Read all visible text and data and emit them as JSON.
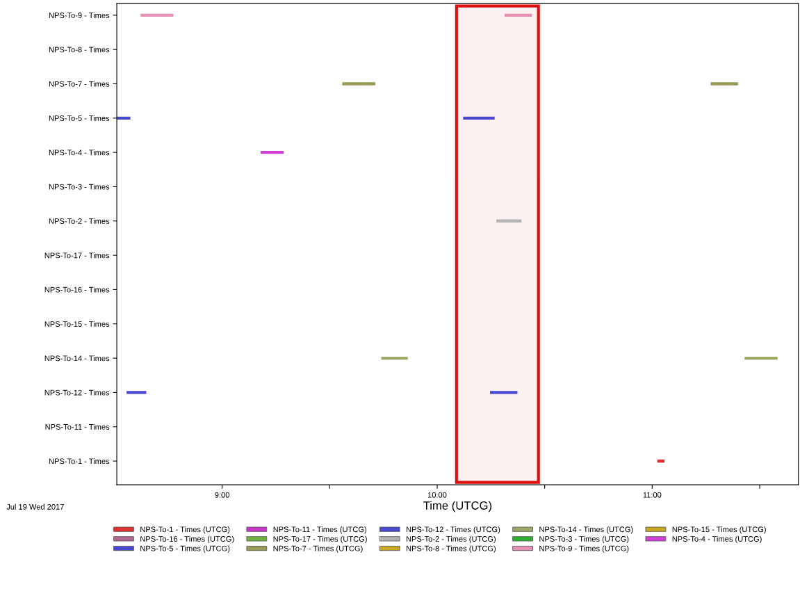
{
  "chart_data": {
    "type": "bar",
    "orientation": "horizontal",
    "xlabel": "Time (UTCG)",
    "categories": [
      "NPS-To-9 - Times",
      "NPS-To-8 - Times",
      "NPS-To-7 - Times",
      "NPS-To-5 - Times",
      "NPS-To-4 - Times",
      "NPS-To-3 - Times",
      "NPS-To-2 - Times",
      "NPS-To-17 - Times",
      "NPS-To-16 - Times",
      "NPS-To-15 - Times",
      "NPS-To-14 - Times",
      "NPS-To-12 - Times",
      "NPS-To-11 - Times",
      "NPS-To-1 - Times"
    ],
    "series": [
      {
        "name": "NPS-To-1 - Times (UTCG)",
        "color": "#e03030",
        "base": [
          null,
          null,
          null,
          null,
          null,
          null,
          null,
          null,
          null,
          null,
          null,
          null,
          null,
          11.026
        ],
        "values": [
          null,
          null,
          null,
          null,
          null,
          null,
          null,
          null,
          null,
          null,
          null,
          null,
          null,
          0.029
        ]
      },
      {
        "name": "NPS-To-11 - Times (UTCG)",
        "color": "#c838c8",
        "base": [
          null,
          null,
          null,
          null,
          null,
          null,
          null,
          null,
          null,
          null,
          null,
          null,
          null,
          null
        ],
        "values": [
          null,
          null,
          null,
          null,
          null,
          null,
          null,
          null,
          null,
          null,
          null,
          null,
          null,
          null
        ]
      },
      {
        "name": "NPS-To-12 - Times (UTCG)",
        "color": "#4848d0",
        "base": [
          null,
          null,
          null,
          null,
          null,
          null,
          null,
          null,
          null,
          null,
          null,
          8.558,
          null,
          null
        ],
        "values": [
          null,
          null,
          null,
          null,
          null,
          null,
          null,
          null,
          null,
          null,
          null,
          0.087,
          null,
          null
        ]
      },
      {
        "name": "NPS-To-14 - Times (UTCG)",
        "color": "#a0a868",
        "base": [
          null,
          null,
          null,
          null,
          null,
          null,
          null,
          null,
          null,
          null,
          9.742,
          null,
          null,
          null
        ],
        "values": [
          null,
          null,
          null,
          null,
          null,
          null,
          null,
          null,
          null,
          null,
          0.119,
          null,
          null,
          null
        ]
      },
      {
        "name": "NPS-To-15 - Times (UTCG)",
        "color": "#c8a820",
        "base": [
          null,
          null,
          null,
          null,
          null,
          null,
          null,
          null,
          null,
          null,
          null,
          null,
          null,
          null
        ],
        "values": [
          null,
          null,
          null,
          null,
          null,
          null,
          null,
          null,
          null,
          null,
          null,
          null,
          null,
          null
        ]
      },
      {
        "name": "NPS-To-16 - Times (UTCG)",
        "color": "#b06890",
        "base": [
          null,
          null,
          null,
          null,
          null,
          null,
          null,
          null,
          null,
          null,
          null,
          null,
          null,
          null
        ],
        "values": [
          null,
          null,
          null,
          null,
          null,
          null,
          null,
          null,
          null,
          null,
          null,
          null,
          null,
          null
        ]
      },
      {
        "name": "NPS-To-17 - Times (UTCG)",
        "color": "#70b040",
        "base": [
          null,
          null,
          null,
          null,
          null,
          null,
          null,
          null,
          null,
          null,
          null,
          null,
          null,
          null
        ],
        "values": [
          null,
          null,
          null,
          null,
          null,
          null,
          null,
          null,
          null,
          null,
          null,
          null,
          null,
          null
        ]
      },
      {
        "name": "NPS-To-2 - Times (UTCG)",
        "color": "#b4b4b4",
        "base": [
          null,
          null,
          null,
          null,
          null,
          null,
          10.277,
          null,
          null,
          null,
          null,
          null,
          null,
          null
        ],
        "values": [
          null,
          null,
          null,
          null,
          null,
          null,
          0.113,
          null,
          null,
          null,
          null,
          null,
          null,
          null
        ]
      },
      {
        "name": "NPS-To-3 - Times (UTCG)",
        "color": "#30b030",
        "base": [
          null,
          null,
          null,
          null,
          null,
          null,
          null,
          null,
          null,
          null,
          null,
          null,
          null,
          null
        ],
        "values": [
          null,
          null,
          null,
          null,
          null,
          null,
          null,
          null,
          null,
          null,
          null,
          null,
          null,
          null
        ]
      },
      {
        "name": "NPS-To-4 - Times (UTCG)",
        "color": "#d040d8",
        "base": [
          null,
          null,
          null,
          null,
          9.181,
          null,
          null,
          null,
          null,
          null,
          null,
          null,
          null,
          null
        ],
        "values": [
          null,
          null,
          null,
          null,
          0.103,
          null,
          null,
          null,
          null,
          null,
          null,
          null,
          null,
          null
        ]
      },
      {
        "name": "NPS-To-5 - Times (UTCG)",
        "color": "#4848d0",
        "base": [
          null,
          null,
          null,
          8.51,
          null,
          null,
          null,
          null,
          null,
          null,
          null,
          null,
          null,
          null
        ],
        "values": [
          null,
          null,
          null,
          0.061,
          null,
          null,
          null,
          null,
          null,
          null,
          null,
          null,
          null,
          null
        ]
      },
      {
        "name": "NPS-To-7 - Times (UTCG)",
        "color": "#9a9a58",
        "base": [
          null,
          null,
          9.561,
          null,
          null,
          null,
          null,
          null,
          null,
          null,
          null,
          null,
          null,
          null
        ],
        "values": [
          null,
          null,
          0.149,
          null,
          null,
          null,
          null,
          null,
          null,
          null,
          null,
          null,
          null,
          null
        ]
      },
      {
        "name": "NPS-To-8 - Times (UTCG)",
        "color": "#c8a820",
        "base": [
          null,
          null,
          null,
          null,
          null,
          null,
          null,
          null,
          null,
          null,
          null,
          null,
          null,
          null
        ],
        "values": [
          null,
          null,
          null,
          null,
          null,
          null,
          null,
          null,
          null,
          null,
          null,
          null,
          null,
          null
        ]
      },
      {
        "name": "NPS-To-9 - Times (UTCG)",
        "color": "#e58fb2",
        "base": [
          8.623,
          null,
          null,
          null,
          null,
          null,
          null,
          null,
          null,
          null,
          null,
          null,
          null,
          null
        ],
        "values": [
          0.148,
          null,
          null,
          null,
          null,
          null,
          null,
          null,
          null,
          null,
          null,
          null,
          null,
          null
        ]
      },
      {
        "color": "#e58fb2",
        "base": [
          10.316,
          null,
          null,
          null,
          null,
          null,
          null,
          null,
          null,
          null,
          null,
          null,
          null,
          null
        ],
        "values": [
          0.123,
          null,
          null,
          null,
          null,
          null,
          null,
          null,
          null,
          null,
          null,
          null,
          null,
          null
        ]
      },
      {
        "color": "#9a9a58",
        "base": [
          null,
          null,
          11.274,
          null,
          null,
          null,
          null,
          null,
          null,
          null,
          null,
          null,
          null,
          null
        ],
        "values": [
          null,
          null,
          0.123,
          null,
          null,
          null,
          null,
          null,
          null,
          null,
          null,
          null,
          null,
          null
        ]
      },
      {
        "color": "#4848d0",
        "base": [
          null,
          null,
          null,
          10.123,
          null,
          null,
          null,
          null,
          null,
          null,
          null,
          null,
          null,
          null
        ],
        "values": [
          null,
          null,
          null,
          0.142,
          null,
          null,
          null,
          null,
          null,
          null,
          null,
          null,
          null,
          null
        ]
      },
      {
        "color": "#a0a868",
        "base": [
          null,
          null,
          null,
          null,
          null,
          null,
          null,
          null,
          null,
          null,
          11.432,
          null,
          null,
          null
        ],
        "values": [
          null,
          null,
          null,
          null,
          null,
          null,
          null,
          null,
          null,
          null,
          0.149,
          null,
          null,
          null
        ]
      },
      {
        "color": "#4848d0",
        "base": [
          null,
          null,
          null,
          null,
          null,
          null,
          null,
          null,
          null,
          null,
          null,
          10.248,
          null,
          null
        ],
        "values": [
          null,
          null,
          null,
          null,
          null,
          null,
          null,
          null,
          null,
          null,
          null,
          0.123,
          null,
          null
        ]
      }
    ],
    "xlim": [
      8.51,
      11.68
    ],
    "xticks": [
      {
        "value": 9,
        "label": "9:00"
      },
      {
        "value": 9.5,
        "label": null
      },
      {
        "value": 10,
        "label": "10:00"
      },
      {
        "value": 10.5,
        "label": null
      },
      {
        "value": 11,
        "label": "11:00"
      },
      {
        "value": 11.5,
        "label": null
      }
    ],
    "bands": [
      {
        "axis": "x",
        "from": 10.09,
        "to": 10.471,
        "color": "#dd1111"
      }
    ],
    "legend": "bottom",
    "grid": false,
    "annotations": [
      "Jul 19 Wed 2017"
    ]
  }
}
